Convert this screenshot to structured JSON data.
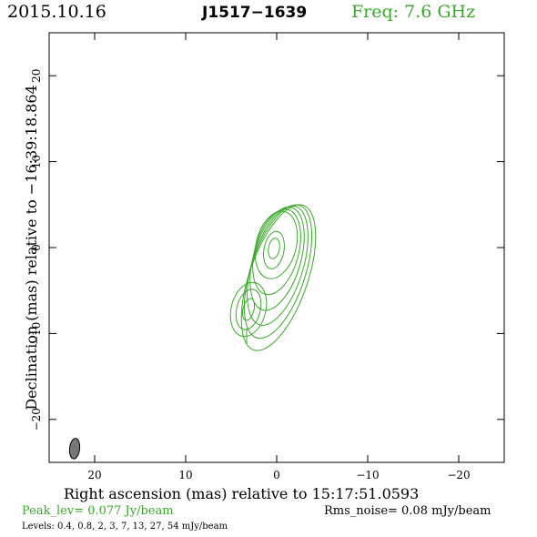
{
  "header": {
    "date": "2015.10.16",
    "source": "J1517−1639",
    "freq": "Freq: 7.6 GHz"
  },
  "footer": {
    "peak": "Peak_lev=  0.077 Jy/beam",
    "rms": "Rms_noise= 0.08 mJy/beam",
    "levels": "Levels: 0.4, 0.8,    2,    3,    7,   13,   27,   54  mJy/beam"
  },
  "colors": {
    "contour": "#3aa82a",
    "beam": "#777777",
    "axes": "#000000"
  },
  "chart_data": {
    "type": "contour",
    "title": "J1517−1639",
    "xlabel": "Right ascension (mas) relative to 15:17:51.0593",
    "ylabel": "Declination (mas) relative to −16:39:18.864",
    "xlim": [
      25,
      -25
    ],
    "ylim": [
      -25,
      25
    ],
    "x_ticks": [
      20,
      10,
      0,
      -10,
      -20
    ],
    "x_tick_labels": [
      "20",
      "10",
      "0",
      "−10",
      "−20"
    ],
    "y_ticks": [
      20,
      10,
      0,
      -10,
      -20
    ],
    "y_tick_labels": [
      "20",
      "10",
      "0",
      "−10",
      "−20"
    ],
    "levels_mJy_per_beam": [
      0.4,
      0.8,
      2,
      3,
      7,
      13,
      27,
      54
    ],
    "core": {
      "ra": 0.3,
      "dec": -0.5,
      "contours": [
        {
          "a": 2.2,
          "b": 4.0,
          "dx": 1.0,
          "dy": 0.8,
          "angle": 14
        },
        {
          "a": 2.4,
          "b": 5.1,
          "dx": 1.2,
          "dy": 0.0,
          "angle": 15
        },
        {
          "a": 2.6,
          "b": 6.2,
          "dx": 1.4,
          "dy": -0.8,
          "angle": 16
        },
        {
          "a": 2.8,
          "b": 7.2,
          "dx": 1.6,
          "dy": -1.6,
          "angle": 17
        },
        {
          "a": 3.0,
          "b": 8.1,
          "dx": 1.8,
          "dy": -2.3,
          "angle": 18
        },
        {
          "a": 3.2,
          "b": 8.9,
          "dx": 2.0,
          "dy": -3.0,
          "angle": 19
        },
        {
          "a": 1.1,
          "b": 2.2,
          "dx": 0.0,
          "dy": 0.2,
          "angle": 10
        },
        {
          "a": 0.6,
          "b": 1.2,
          "dx": 0.0,
          "dy": 0.4,
          "angle": 10
        }
      ]
    },
    "component": {
      "ra": 3.1,
      "dec": -7.2,
      "contours": [
        {
          "a": 1.9,
          "b": 3.2,
          "angle": 14
        },
        {
          "a": 1.3,
          "b": 2.4,
          "angle": 14
        },
        {
          "a": 0.6,
          "b": 1.3,
          "angle": 14
        }
      ]
    },
    "beam": {
      "ra": 22.2,
      "dec": -23.4,
      "major": 2.4,
      "minor": 1.1,
      "angle": 6
    }
  }
}
